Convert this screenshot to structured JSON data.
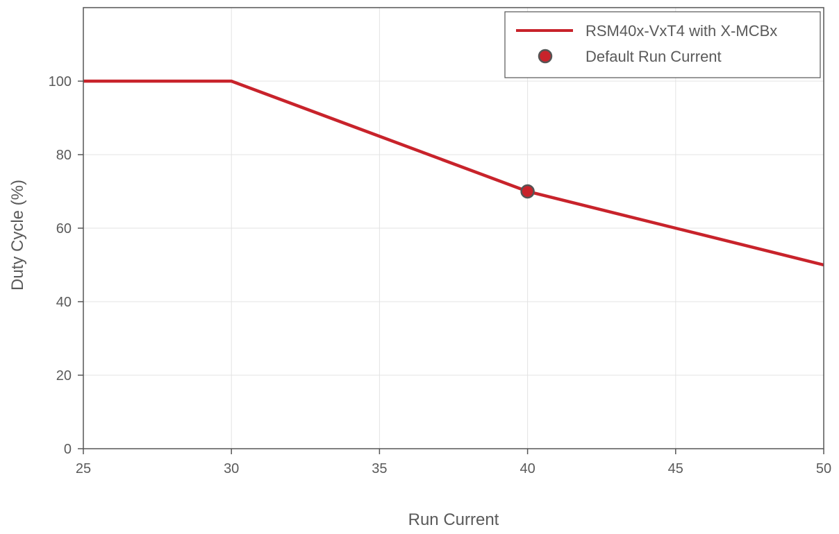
{
  "chart_data": {
    "type": "line",
    "xlabel": "Run Current",
    "ylabel": "Duty Cycle (%)",
    "xlim": [
      25,
      50
    ],
    "ylim": [
      0,
      120
    ],
    "x_ticks": [
      25,
      30,
      35,
      40,
      45,
      50
    ],
    "y_ticks": [
      0,
      20,
      40,
      60,
      80,
      100
    ],
    "grid": true,
    "legend_position": "top-right",
    "series": [
      {
        "name": "RSM40x-VxT4 with X-MCBx",
        "type": "line",
        "color": "#c8232b",
        "x": [
          25,
          30,
          40,
          45,
          50
        ],
        "y": [
          100,
          100,
          70,
          60,
          50
        ]
      },
      {
        "name": "Default Run Current",
        "type": "scatter",
        "color": "#c8232b",
        "edge_color": "#555555",
        "x": [
          40
        ],
        "y": [
          70
        ]
      }
    ]
  }
}
